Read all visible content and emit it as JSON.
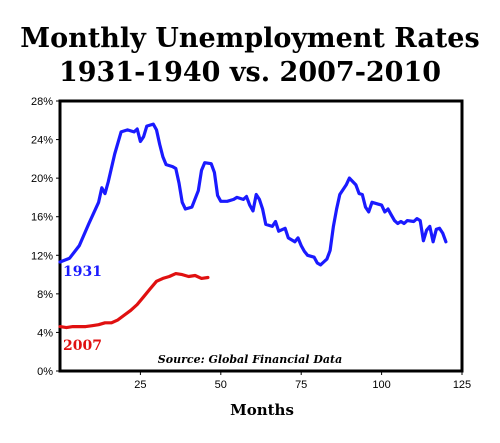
{
  "title_line1": "Monthly Unemployment Rates",
  "title_line2": "1931-1940 vs. 2007-2010",
  "chart_data": {
    "type": "line",
    "xlabel": "Months",
    "ylabel": "",
    "xlim": [
      0,
      125
    ],
    "ylim": [
      0,
      28
    ],
    "x_ticks": [
      25,
      50,
      75,
      100,
      125
    ],
    "y_ticks": [
      0,
      4,
      8,
      12,
      16,
      20,
      24,
      28
    ],
    "y_tick_labels": [
      "0%",
      "4%",
      "8%",
      "12%",
      "16%",
      "20%",
      "24%",
      "28%"
    ],
    "grid": false,
    "source_note": "Source: Global Financial Data",
    "series": [
      {
        "name": "1931",
        "color": "#1a1aff",
        "points": [
          [
            0,
            11.3
          ],
          [
            3,
            11.7
          ],
          [
            6,
            13
          ],
          [
            9,
            15.3
          ],
          [
            12,
            17.5
          ],
          [
            13,
            19
          ],
          [
            14,
            18.4
          ],
          [
            15,
            19.6
          ],
          [
            17,
            22.5
          ],
          [
            19,
            24.8
          ],
          [
            21,
            25
          ],
          [
            23,
            24.8
          ],
          [
            24,
            25.1
          ],
          [
            25,
            23.8
          ],
          [
            26,
            24.3
          ],
          [
            27,
            25.4
          ],
          [
            29,
            25.6
          ],
          [
            30,
            25
          ],
          [
            31,
            23.5
          ],
          [
            32,
            22.2
          ],
          [
            33,
            21.4
          ],
          [
            35,
            21.2
          ],
          [
            36,
            21
          ],
          [
            37,
            19.5
          ],
          [
            38,
            17.5
          ],
          [
            39,
            16.8
          ],
          [
            41,
            17
          ],
          [
            43,
            18.7
          ],
          [
            44,
            20.8
          ],
          [
            45,
            21.6
          ],
          [
            47,
            21.5
          ],
          [
            48,
            20.6
          ],
          [
            49,
            18.2
          ],
          [
            50,
            17.6
          ],
          [
            52,
            17.6
          ],
          [
            54,
            17.8
          ],
          [
            55,
            18
          ],
          [
            57,
            17.8
          ],
          [
            58,
            18.1
          ],
          [
            59,
            17.2
          ],
          [
            60,
            16.6
          ],
          [
            61,
            18.3
          ],
          [
            62,
            17.8
          ],
          [
            63,
            16.8
          ],
          [
            64,
            15.2
          ],
          [
            66,
            15
          ],
          [
            67,
            15.5
          ],
          [
            68,
            14.5
          ],
          [
            70,
            14.8
          ],
          [
            71,
            13.8
          ],
          [
            73,
            13.4
          ],
          [
            74,
            13.8
          ],
          [
            75,
            13
          ],
          [
            76,
            12.4
          ],
          [
            77,
            12
          ],
          [
            79,
            11.8
          ],
          [
            80,
            11.2
          ],
          [
            81,
            11
          ],
          [
            82,
            11.3
          ],
          [
            83,
            11.6
          ],
          [
            84,
            12.5
          ],
          [
            85,
            15
          ],
          [
            86,
            16.8
          ],
          [
            87,
            18.3
          ],
          [
            89,
            19.3
          ],
          [
            90,
            20
          ],
          [
            92,
            19.3
          ],
          [
            93,
            18.4
          ],
          [
            94,
            18.3
          ],
          [
            95,
            17
          ],
          [
            96,
            16.5
          ],
          [
            97,
            17.5
          ],
          [
            99,
            17.3
          ],
          [
            100,
            17.2
          ],
          [
            101,
            16.5
          ],
          [
            102,
            16.8
          ],
          [
            103,
            16.2
          ],
          [
            104,
            15.6
          ],
          [
            105,
            15.3
          ],
          [
            106,
            15.5
          ],
          [
            107,
            15.3
          ],
          [
            108,
            15.6
          ],
          [
            110,
            15.5
          ],
          [
            111,
            15.8
          ],
          [
            112,
            15.6
          ],
          [
            113,
            13.5
          ],
          [
            114,
            14.6
          ],
          [
            115,
            15
          ],
          [
            116,
            13.4
          ],
          [
            117,
            14.7
          ],
          [
            118,
            14.8
          ],
          [
            119,
            14.3
          ],
          [
            120,
            13.4
          ]
        ]
      },
      {
        "name": "2007",
        "color": "#e01010",
        "points": [
          [
            0,
            4.6
          ],
          [
            2,
            4.5
          ],
          [
            4,
            4.6
          ],
          [
            6,
            4.6
          ],
          [
            8,
            4.6
          ],
          [
            10,
            4.7
          ],
          [
            12,
            4.8
          ],
          [
            14,
            5
          ],
          [
            16,
            5
          ],
          [
            18,
            5.3
          ],
          [
            20,
            5.8
          ],
          [
            22,
            6.3
          ],
          [
            24,
            6.9
          ],
          [
            26,
            7.7
          ],
          [
            28,
            8.5
          ],
          [
            30,
            9.3
          ],
          [
            32,
            9.6
          ],
          [
            34,
            9.8
          ],
          [
            36,
            10.1
          ],
          [
            38,
            10
          ],
          [
            40,
            9.8
          ],
          [
            42,
            9.9
          ],
          [
            44,
            9.6
          ],
          [
            46,
            9.7
          ]
        ]
      }
    ]
  }
}
